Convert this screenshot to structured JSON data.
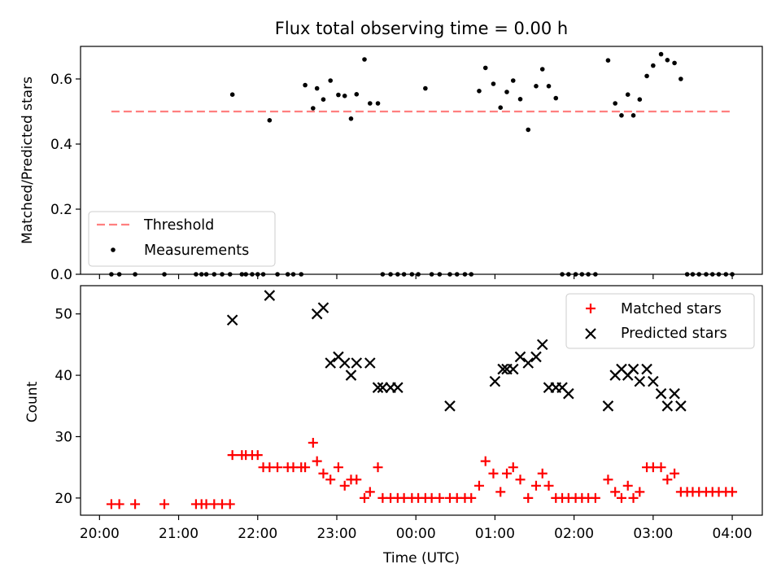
{
  "chart_data": [
    {
      "type": "scatter",
      "title": "Flux total observing time = 0.00 h",
      "ylabel": "Matched/Predicted stars",
      "ylim": [
        0,
        0.7
      ],
      "yticks": [
        "0.0",
        "0.2",
        "0.4",
        "0.6"
      ],
      "grid": false,
      "legend_placement": "lower-left",
      "threshold": {
        "name": "Threshold",
        "value": 0.5,
        "x_range": [
          0.15,
          8.0
        ],
        "color": "#ff7f7f"
      },
      "series": [
        {
          "name": "Measurements",
          "color": "#000000",
          "x": [
            0.15,
            0.25,
            0.45,
            0.82,
            1.22,
            1.29,
            1.35,
            1.45,
            1.55,
            1.65,
            1.68,
            1.8,
            1.85,
            1.93,
            2.0,
            2.07,
            2.15,
            2.25,
            2.38,
            2.45,
            2.55,
            2.6,
            2.7,
            2.75,
            2.83,
            2.92,
            3.02,
            3.1,
            3.18,
            3.25,
            3.35,
            3.42,
            3.52,
            3.58,
            3.68,
            3.77,
            3.85,
            3.95,
            4.03,
            4.12,
            4.2,
            4.3,
            4.43,
            4.52,
            4.62,
            4.7,
            4.8,
            4.88,
            4.98,
            5.07,
            5.15,
            5.23,
            5.32,
            5.42,
            5.52,
            5.6,
            5.68,
            5.77,
            5.85,
            5.93,
            6.02,
            6.1,
            6.18,
            6.27,
            6.43,
            6.52,
            6.6,
            6.68,
            6.75,
            6.83,
            6.92,
            7.0,
            7.1,
            7.18,
            7.27,
            7.35,
            7.43,
            7.5,
            7.58,
            7.67,
            7.75,
            7.83,
            7.92,
            8.0
          ],
          "y": [
            0,
            0,
            0,
            0,
            0,
            0,
            0,
            0,
            0,
            0,
            0.552,
            0,
            0,
            0,
            0,
            0,
            0.473,
            0,
            0,
            0,
            0,
            0.581,
            0.51,
            0.571,
            0.537,
            0.595,
            0.551,
            0.548,
            0.478,
            0.553,
            0.66,
            0.525,
            0.525,
            0,
            0,
            0,
            0,
            0,
            0,
            0.571,
            0,
            0,
            0,
            0,
            0,
            0,
            0.563,
            0.634,
            0.585,
            0.512,
            0.56,
            0.595,
            0.538,
            0.444,
            0.578,
            0.63,
            0.578,
            0.541,
            0,
            0,
            0,
            0,
            0,
            0,
            0.657,
            0.525,
            0.488,
            0.552,
            0.488,
            0.537,
            0.609,
            0.641,
            0.676,
            0.658,
            0.649,
            0.6,
            0,
            0,
            0,
            0,
            0,
            0,
            0,
            0
          ]
        }
      ]
    },
    {
      "type": "scatter",
      "xlabel": "Time (UTC)",
      "ylabel": "Count",
      "ylim": [
        17.2,
        54.6
      ],
      "yticks": [
        "20",
        "30",
        "40",
        "50"
      ],
      "xlim": [
        -0.24,
        8.38
      ],
      "xticks": [
        "20:00",
        "21:00",
        "22:00",
        "23:00",
        "00:00",
        "01:00",
        "02:00",
        "03:00",
        "04:00"
      ],
      "grid": false,
      "legend_placement": "upper-right",
      "series": [
        {
          "name": "Matched stars",
          "color": "#ff0000",
          "x": [
            0.15,
            0.25,
            0.45,
            0.82,
            1.22,
            1.29,
            1.35,
            1.45,
            1.55,
            1.65,
            1.68,
            1.8,
            1.85,
            1.93,
            2.0,
            2.07,
            2.15,
            2.25,
            2.38,
            2.45,
            2.55,
            2.6,
            2.7,
            2.75,
            2.83,
            2.92,
            3.02,
            3.1,
            3.18,
            3.25,
            3.35,
            3.42,
            3.52,
            3.58,
            3.68,
            3.77,
            3.85,
            3.95,
            4.03,
            4.12,
            4.2,
            4.3,
            4.43,
            4.52,
            4.62,
            4.7,
            4.8,
            4.88,
            4.98,
            5.07,
            5.15,
            5.23,
            5.32,
            5.42,
            5.52,
            5.6,
            5.68,
            5.77,
            5.85,
            5.93,
            6.02,
            6.1,
            6.18,
            6.27,
            6.43,
            6.52,
            6.6,
            6.68,
            6.75,
            6.83,
            6.92,
            7.0,
            7.1,
            7.18,
            7.27,
            7.35,
            7.43,
            7.5,
            7.58,
            7.67,
            7.75,
            7.83,
            7.92,
            8.0
          ],
          "y": [
            19,
            19,
            19,
            19,
            19,
            19,
            19,
            19,
            19,
            19,
            27,
            27,
            27,
            27,
            27,
            25,
            25,
            25,
            25,
            25,
            25,
            25,
            29,
            26,
            24,
            23,
            25,
            22,
            23,
            23,
            20,
            21,
            25,
            20,
            20,
            20,
            20,
            20,
            20,
            20,
            20,
            20,
            20,
            20,
            20,
            20,
            22,
            26,
            24,
            21,
            24,
            25,
            23,
            20,
            22,
            24,
            22,
            20,
            20,
            20,
            20,
            20,
            20,
            20,
            23,
            21,
            20,
            22,
            20,
            21,
            25,
            25,
            25,
            23,
            24,
            21,
            21,
            21,
            21,
            21,
            21,
            21,
            21,
            21
          ]
        },
        {
          "name": "Predicted stars",
          "color": "#000000",
          "x": [
            1.68,
            2.15,
            2.75,
            2.83,
            2.92,
            3.02,
            3.1,
            3.18,
            3.25,
            3.42,
            3.52,
            3.58,
            3.68,
            3.77,
            4.43,
            5.0,
            5.1,
            5.15,
            5.23,
            5.32,
            5.42,
            5.52,
            5.6,
            5.68,
            5.77,
            5.85,
            5.93,
            6.43,
            6.52,
            6.6,
            6.68,
            6.75,
            6.83,
            6.92,
            7.0,
            7.1,
            7.18,
            7.27,
            7.35
          ],
          "y": [
            49,
            53,
            50,
            51,
            42,
            43,
            42,
            40,
            42,
            42,
            38,
            38,
            38,
            38,
            35,
            39,
            41,
            41,
            41,
            43,
            42,
            43,
            45,
            38,
            38,
            38,
            37,
            35,
            40,
            41,
            40,
            41,
            39,
            41,
            39,
            37,
            35,
            37,
            35
          ]
        }
      ]
    }
  ]
}
